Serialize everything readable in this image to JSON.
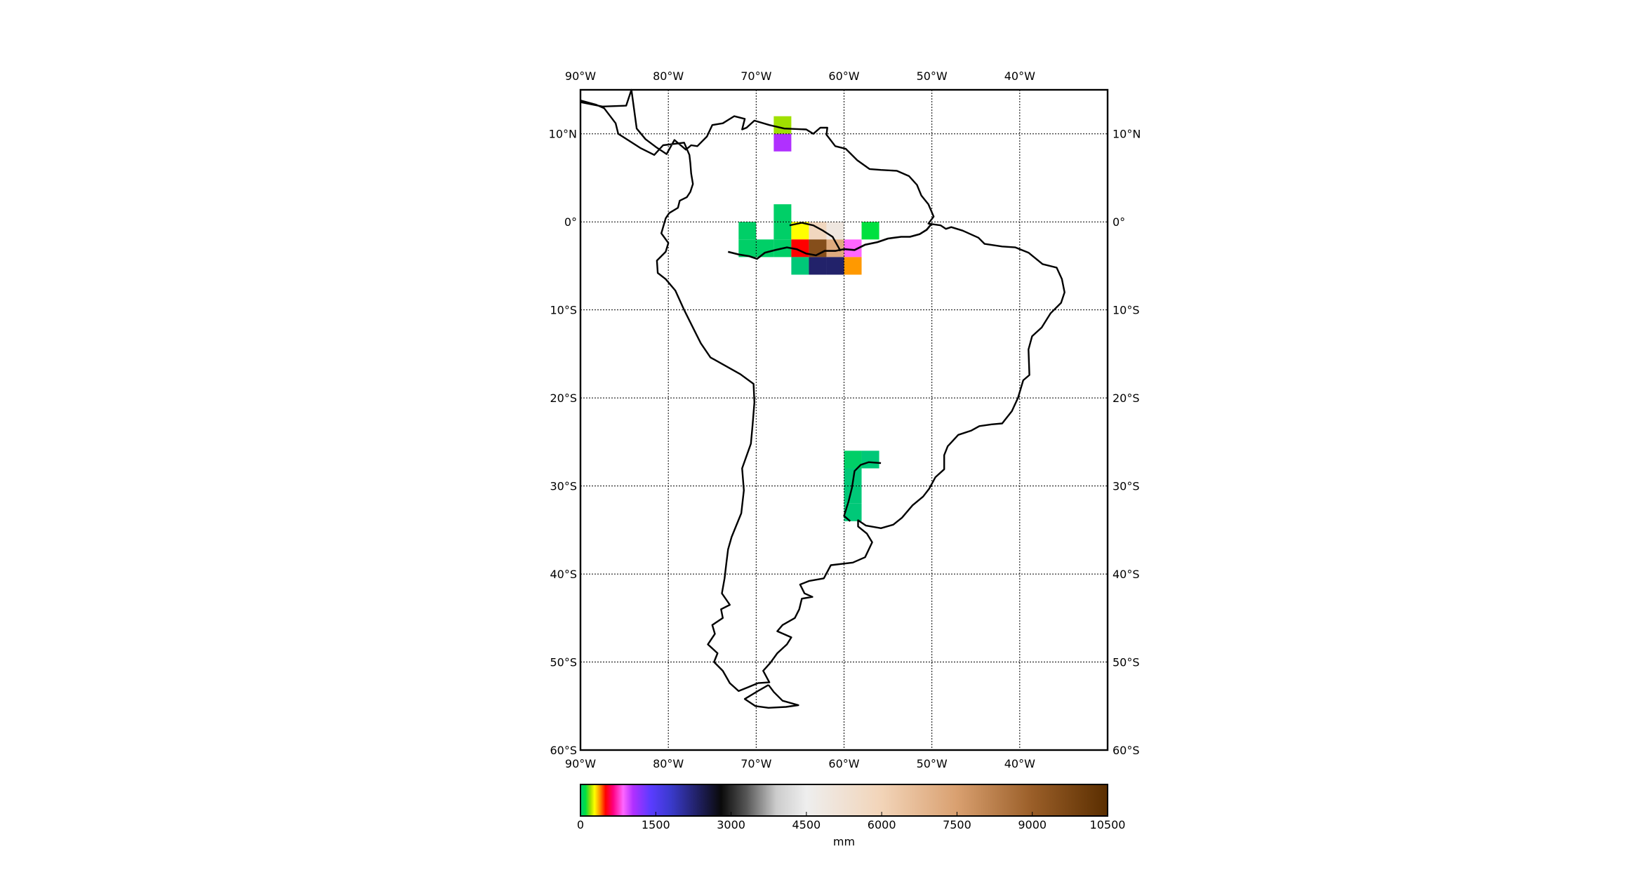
{
  "map": {
    "region": "South America",
    "projection": "cylindrical",
    "lon_range": [
      -90,
      -30
    ],
    "lat_range": [
      -60,
      15
    ],
    "grid": true,
    "top_lon_labels": [
      "90°W",
      "80°W",
      "70°W",
      "60°W",
      "50°W",
      "40°W"
    ],
    "bottom_lon_labels": [
      "90°W",
      "80°W",
      "70°W",
      "60°W",
      "50°W",
      "40°W"
    ],
    "left_lat_labels": [
      "10°N",
      "0°",
      "10°S",
      "20°S",
      "30°S",
      "40°S",
      "50°S",
      "60°S"
    ],
    "right_lat_labels": [
      "10°N",
      "0°",
      "10°S",
      "20°S",
      "30°S",
      "40°S",
      "50°S",
      "60°S"
    ]
  },
  "colorbar": {
    "label": "mm",
    "ticks": [
      "0",
      "1500",
      "3000",
      "4500",
      "6000",
      "7500",
      "9000",
      "10500"
    ],
    "range": [
      0,
      10500
    ],
    "stops": [
      {
        "v": 0,
        "c": "#00c878"
      },
      {
        "v": 100,
        "c": "#00e040"
      },
      {
        "v": 200,
        "c": "#a0e000"
      },
      {
        "v": 280,
        "c": "#ffff00"
      },
      {
        "v": 380,
        "c": "#ff9900"
      },
      {
        "v": 500,
        "c": "#ff0000"
      },
      {
        "v": 650,
        "c": "#ff0080"
      },
      {
        "v": 850,
        "c": "#ff66ff"
      },
      {
        "v": 1050,
        "c": "#b030ff"
      },
      {
        "v": 1400,
        "c": "#5a3cff"
      },
      {
        "v": 1800,
        "c": "#3a3acc"
      },
      {
        "v": 2300,
        "c": "#22226a"
      },
      {
        "v": 2800,
        "c": "#0a0a0a"
      },
      {
        "v": 3300,
        "c": "#555555"
      },
      {
        "v": 3900,
        "c": "#cccccc"
      },
      {
        "v": 4500,
        "c": "#eeeeee"
      },
      {
        "v": 6000,
        "c": "#f2d4b8"
      },
      {
        "v": 7500,
        "c": "#d9a070"
      },
      {
        "v": 9000,
        "c": "#9a5e28"
      },
      {
        "v": 10500,
        "c": "#5a2e00"
      }
    ]
  },
  "chart_data": {
    "type": "heatmap",
    "cell_size_deg": 2,
    "unit": "mm",
    "cells": [
      {
        "lon": -67,
        "lat": 11,
        "value": 200
      },
      {
        "lon": -67,
        "lat": 9,
        "value": 1050
      },
      {
        "lon": -67,
        "lat": 1,
        "value": 30
      },
      {
        "lon": -71,
        "lat": -1,
        "value": 30
      },
      {
        "lon": -67,
        "lat": -1,
        "value": 30
      },
      {
        "lon": -65,
        "lat": -1,
        "value": 280
      },
      {
        "lon": -63,
        "lat": -1,
        "value": 5800
      },
      {
        "lon": -61,
        "lat": -1,
        "value": 4900
      },
      {
        "lon": -57,
        "lat": -1,
        "value": 100
      },
      {
        "lon": -71,
        "lat": -3,
        "value": 30
      },
      {
        "lon": -69,
        "lat": -3,
        "value": 30
      },
      {
        "lon": -67,
        "lat": -3,
        "value": 30
      },
      {
        "lon": -65,
        "lat": -3,
        "value": 500
      },
      {
        "lon": -63,
        "lat": -3,
        "value": 9500
      },
      {
        "lon": -61,
        "lat": -3,
        "value": 7200
      },
      {
        "lon": -59,
        "lat": -3,
        "value": 850
      },
      {
        "lon": -65,
        "lat": -5,
        "value": 0
      },
      {
        "lon": -63,
        "lat": -5,
        "value": 2300
      },
      {
        "lon": -61,
        "lat": -5,
        "value": 2300
      },
      {
        "lon": -59,
        "lat": -5,
        "value": 380
      },
      {
        "lon": -59,
        "lat": -27,
        "value": 30
      },
      {
        "lon": -57,
        "lat": -27,
        "value": 0
      },
      {
        "lon": -59,
        "lat": -29,
        "value": 0
      },
      {
        "lon": -59,
        "lat": -31,
        "value": 0
      },
      {
        "lon": -59,
        "lat": -33,
        "value": 0
      }
    ]
  }
}
